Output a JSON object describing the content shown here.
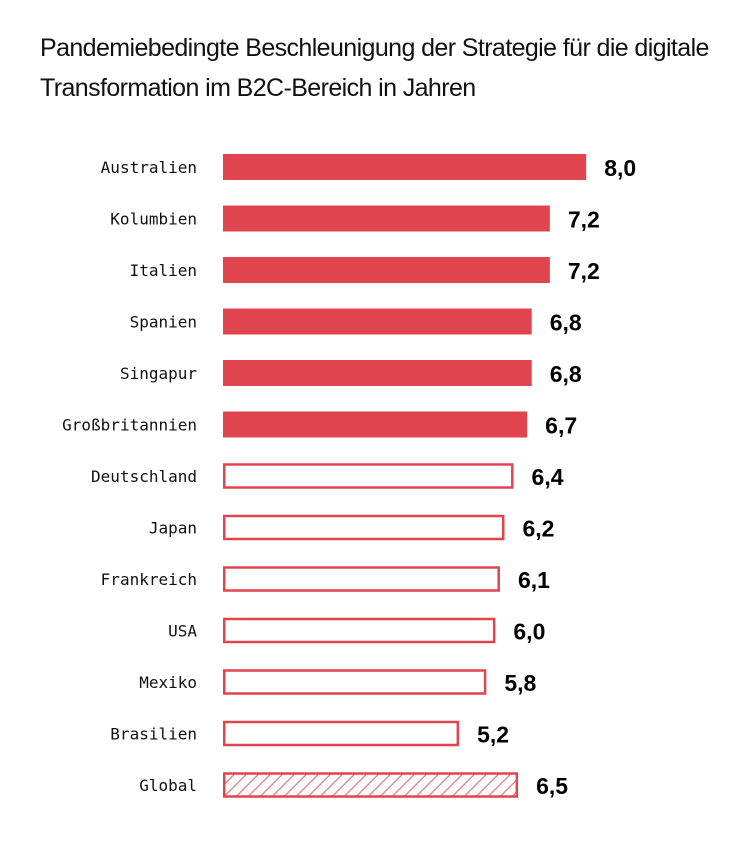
{
  "colors": {
    "accent": "#e0444e",
    "text": "#111111"
  },
  "chart_data": {
    "type": "bar",
    "orientation": "horizontal",
    "title": "Pandemiebedingte Beschleunigung der Strategie für die digitale Transformation im B2C-Bereich in Jahren",
    "xlabel": "",
    "ylabel": "",
    "xlim": [
      0,
      8
    ],
    "grid": false,
    "legend": null,
    "categories": [
      "Australien",
      "Kolumbien",
      "Italien",
      "Spanien",
      "Singapur",
      "Großbritannien",
      "Deutschland",
      "Japan",
      "Frankreich",
      "USA",
      "Mexiko",
      "Brasilien",
      "Global"
    ],
    "values": [
      8.0,
      7.2,
      7.2,
      6.8,
      6.8,
      6.7,
      6.4,
      6.2,
      6.1,
      6.0,
      5.8,
      5.2,
      6.5
    ],
    "value_labels": [
      "8,0",
      "7,2",
      "7,2",
      "6,8",
      "6,8",
      "6,7",
      "6,4",
      "6,2",
      "6,1",
      "6,0",
      "5,8",
      "5,2",
      "6,5"
    ],
    "styles": [
      "filled",
      "filled",
      "filled",
      "filled",
      "filled",
      "filled",
      "outline",
      "outline",
      "outline",
      "outline",
      "outline",
      "outline",
      "hatched"
    ]
  }
}
